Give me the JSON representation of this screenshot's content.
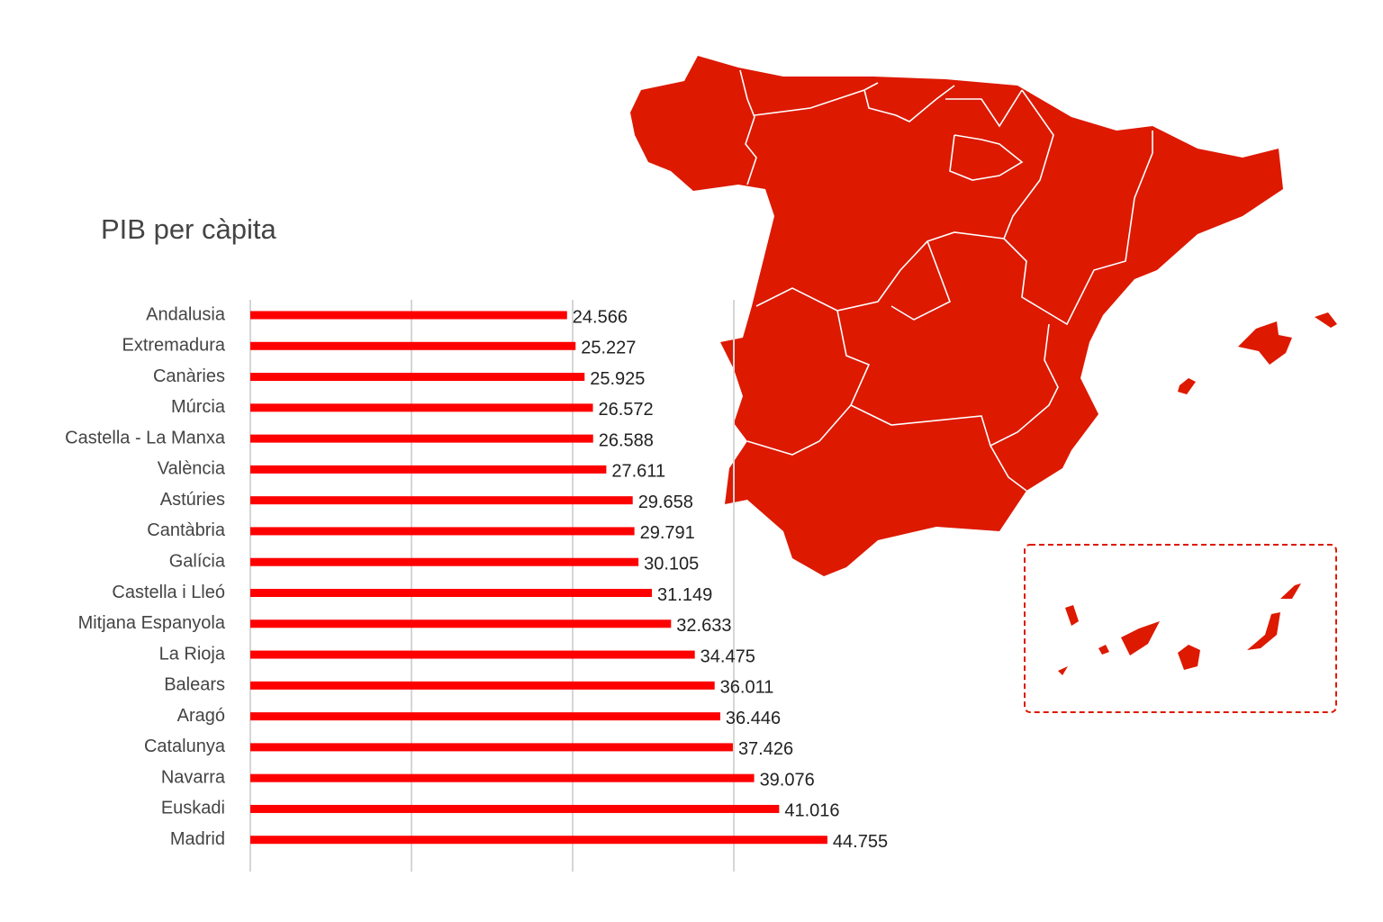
{
  "chart_data": {
    "type": "barh",
    "title": "PIB per càpita",
    "categories": [
      "Andalusia",
      "Extremadura",
      "Canàries",
      "Múrcia",
      "Castella - La Manxa",
      "València",
      "Astúries",
      "Cantàbria",
      "Galícia",
      "Castella i Lleó",
      "Mitjana Espanyola",
      "La Rioja",
      "Balears",
      "Aragó",
      "Catalunya",
      "Navarra",
      "Euskadi",
      "Madrid"
    ],
    "values": [
      24566,
      25227,
      25925,
      26572,
      26588,
      27611,
      29658,
      29791,
      30105,
      31149,
      32633,
      34475,
      36011,
      36446,
      37426,
      39076,
      41016,
      44755
    ],
    "value_labels": [
      "24.566",
      "25.227",
      "25.925",
      "26.572",
      "26.588",
      "27.611",
      "29.658",
      "29.791",
      "30.105",
      "31.149",
      "32.633",
      "34.475",
      "36.011",
      "36.446",
      "37.426",
      "39.076",
      "41.016",
      "44.755"
    ],
    "color": "#fe0000",
    "xlim": [
      0,
      50000
    ],
    "xticks": [
      0,
      12500,
      25000,
      37500
    ],
    "grid": true
  }
}
